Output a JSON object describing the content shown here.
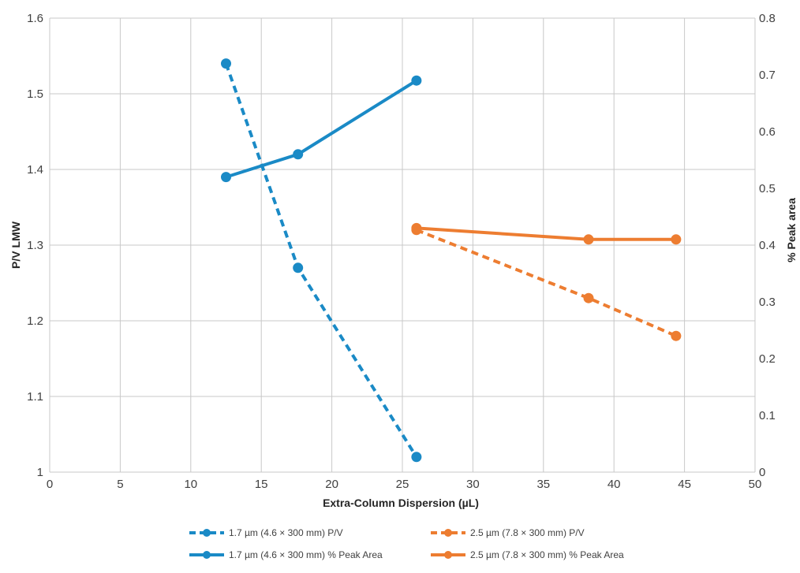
{
  "chart_data": {
    "type": "line",
    "title": "",
    "xlabel": "Extra-Column Dispersion (µL)",
    "ylabel": "P/V LMW",
    "y2label": "% Peak area",
    "xlim": [
      0,
      50
    ],
    "ylim": [
      1,
      1.6
    ],
    "y2lim": [
      0,
      0.8
    ],
    "x_ticks": [
      "0",
      "5",
      "10",
      "15",
      "20",
      "25",
      "30",
      "35",
      "40",
      "45",
      "50"
    ],
    "y_ticks": [
      "1",
      "1.1",
      "1.2",
      "1.3",
      "1.4",
      "1.5",
      "1.6"
    ],
    "y2_ticks": [
      "0",
      "0.1",
      "0.2",
      "0.3",
      "0.4",
      "0.5",
      "0.6",
      "0.7",
      "0.8"
    ],
    "grid": true,
    "legend_position": "bottom",
    "series": [
      {
        "name": "1.7 µm (4.6 × 300 mm) P/V",
        "axis": "left",
        "color": "#1a8ac6",
        "dashed": true,
        "x": [
          12.5,
          17.6,
          26.0
        ],
        "y": [
          1.54,
          1.27,
          1.02
        ]
      },
      {
        "name": "2.5 µm (7.8 × 300 mm) P/V",
        "axis": "left",
        "color": "#ed7d31",
        "dashed": true,
        "x": [
          26.0,
          38.2,
          44.4
        ],
        "y": [
          1.32,
          1.23,
          1.18
        ]
      },
      {
        "name": "1.7 µm (4.6 × 300 mm) % Peak Area",
        "axis": "right",
        "color": "#1a8ac6",
        "dashed": false,
        "x": [
          12.5,
          17.6,
          26.0
        ],
        "y": [
          0.52,
          0.56,
          0.69
        ]
      },
      {
        "name": "2.5 µm (7.8 × 300 mm) % Peak Area",
        "axis": "right",
        "color": "#ed7d31",
        "dashed": false,
        "x": [
          26.0,
          38.2,
          44.4
        ],
        "y": [
          0.43,
          0.41,
          0.41
        ]
      }
    ]
  }
}
